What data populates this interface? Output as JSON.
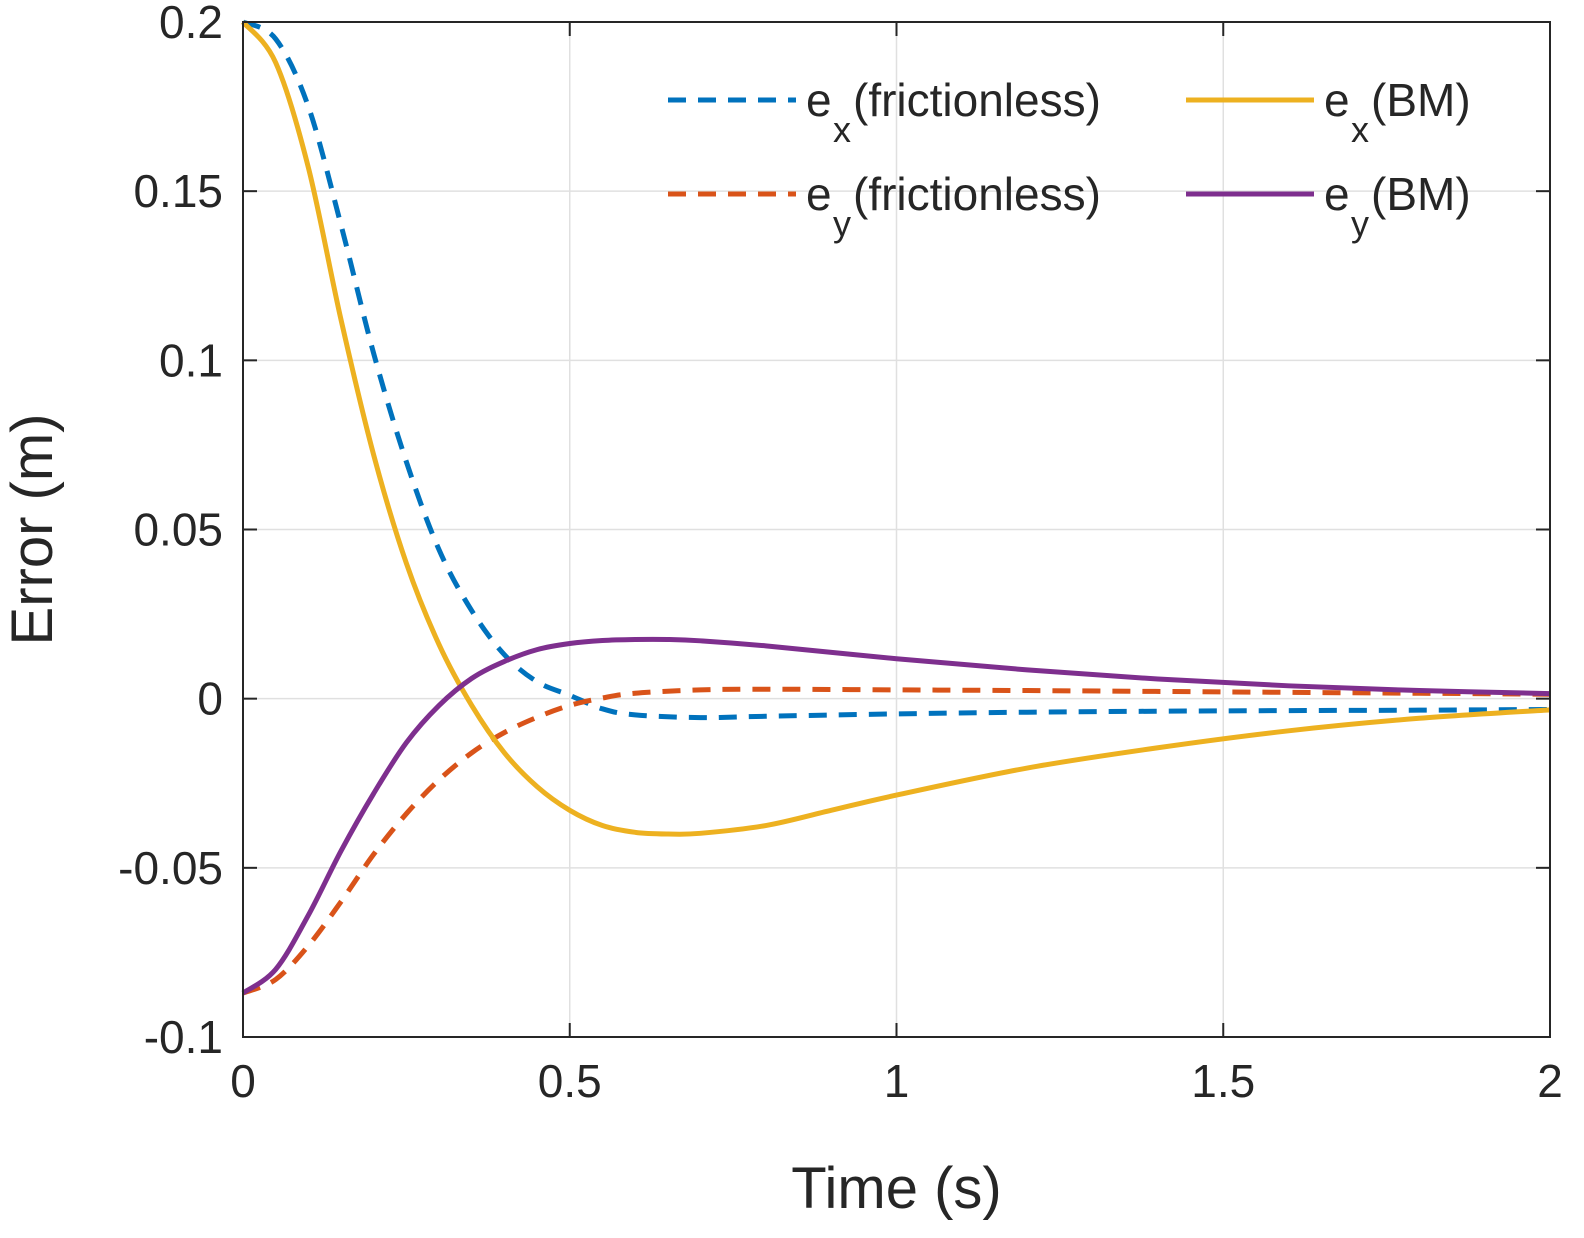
{
  "chart_data": {
    "type": "line",
    "title": "",
    "xlabel": "Time (s)",
    "ylabel": "Error (m)",
    "xlim": [
      0,
      2
    ],
    "ylim": [
      -0.1,
      0.2
    ],
    "xticks": [
      0,
      0.5,
      1,
      1.5,
      2
    ],
    "xtick_labels": [
      "0",
      "0.5",
      "1",
      "1.5",
      "2"
    ],
    "yticks": [
      -0.1,
      -0.05,
      0,
      0.05,
      0.1,
      0.15,
      0.2
    ],
    "ytick_labels": [
      "-0.1",
      "-0.05",
      "0",
      "0.05",
      "0.1",
      "0.15",
      "0.2"
    ],
    "grid": true,
    "legend_position": "top-right",
    "series": [
      {
        "name": "e_x (frictionless)",
        "label_main": "e",
        "label_sub": "x",
        "label_rest": " (frictionless)",
        "color": "#0072BD",
        "style": "dashed",
        "x": [
          0,
          0.05,
          0.1,
          0.15,
          0.2,
          0.25,
          0.3,
          0.35,
          0.4,
          0.45,
          0.5,
          0.55,
          0.6,
          0.7,
          0.8,
          1.0,
          1.2,
          1.5,
          1.8,
          2.0
        ],
        "y": [
          0.2,
          0.195,
          0.175,
          0.14,
          0.102,
          0.07,
          0.044,
          0.026,
          0.013,
          0.005,
          0.001,
          -0.003,
          -0.0048,
          -0.0056,
          -0.0052,
          -0.0045,
          -0.004,
          -0.0036,
          -0.0034,
          -0.0032
        ]
      },
      {
        "name": "e_y (frictionless)",
        "label_main": "e",
        "label_sub": "y",
        "label_rest": " (frictionless)",
        "color": "#D95319",
        "style": "dashed",
        "x": [
          0,
          0.05,
          0.1,
          0.15,
          0.2,
          0.25,
          0.3,
          0.35,
          0.4,
          0.45,
          0.5,
          0.55,
          0.6,
          0.7,
          0.8,
          1.0,
          1.2,
          1.5,
          1.8,
          2.0
        ],
        "y": [
          -0.087,
          -0.083,
          -0.073,
          -0.06,
          -0.046,
          -0.034,
          -0.024,
          -0.016,
          -0.01,
          -0.0055,
          -0.002,
          0.0002,
          0.0016,
          0.0026,
          0.0028,
          0.0026,
          0.0024,
          0.002,
          0.0016,
          0.0013
        ]
      },
      {
        "name": "e_x (BM)",
        "label_main": "e",
        "label_sub": "x",
        "label_rest": " (BM)",
        "color": "#EDB120",
        "style": "solid",
        "x": [
          0,
          0.05,
          0.1,
          0.15,
          0.2,
          0.25,
          0.3,
          0.35,
          0.4,
          0.45,
          0.5,
          0.55,
          0.6,
          0.65,
          0.7,
          0.8,
          0.9,
          1.0,
          1.2,
          1.4,
          1.6,
          1.8,
          2.0
        ],
        "y": [
          0.2,
          0.188,
          0.157,
          0.112,
          0.072,
          0.04,
          0.016,
          -0.002,
          -0.016,
          -0.026,
          -0.033,
          -0.0375,
          -0.0395,
          -0.04,
          -0.0398,
          -0.0375,
          -0.033,
          -0.0285,
          -0.0205,
          -0.0145,
          -0.0095,
          -0.0058,
          -0.0033
        ]
      },
      {
        "name": "e_y (BM)",
        "label_main": "e",
        "label_sub": "y",
        "label_rest": " (BM)",
        "color": "#7E2F8E",
        "style": "solid",
        "x": [
          0,
          0.05,
          0.1,
          0.15,
          0.2,
          0.25,
          0.3,
          0.35,
          0.4,
          0.45,
          0.5,
          0.55,
          0.6,
          0.65,
          0.7,
          0.8,
          1.0,
          1.2,
          1.4,
          1.6,
          1.8,
          2.0
        ],
        "y": [
          -0.087,
          -0.08,
          -0.064,
          -0.045,
          -0.028,
          -0.013,
          -0.002,
          0.006,
          0.011,
          0.0145,
          0.0163,
          0.0172,
          0.0175,
          0.0175,
          0.0171,
          0.0156,
          0.0118,
          0.0085,
          0.0058,
          0.0038,
          0.0024,
          0.0015
        ]
      }
    ]
  }
}
